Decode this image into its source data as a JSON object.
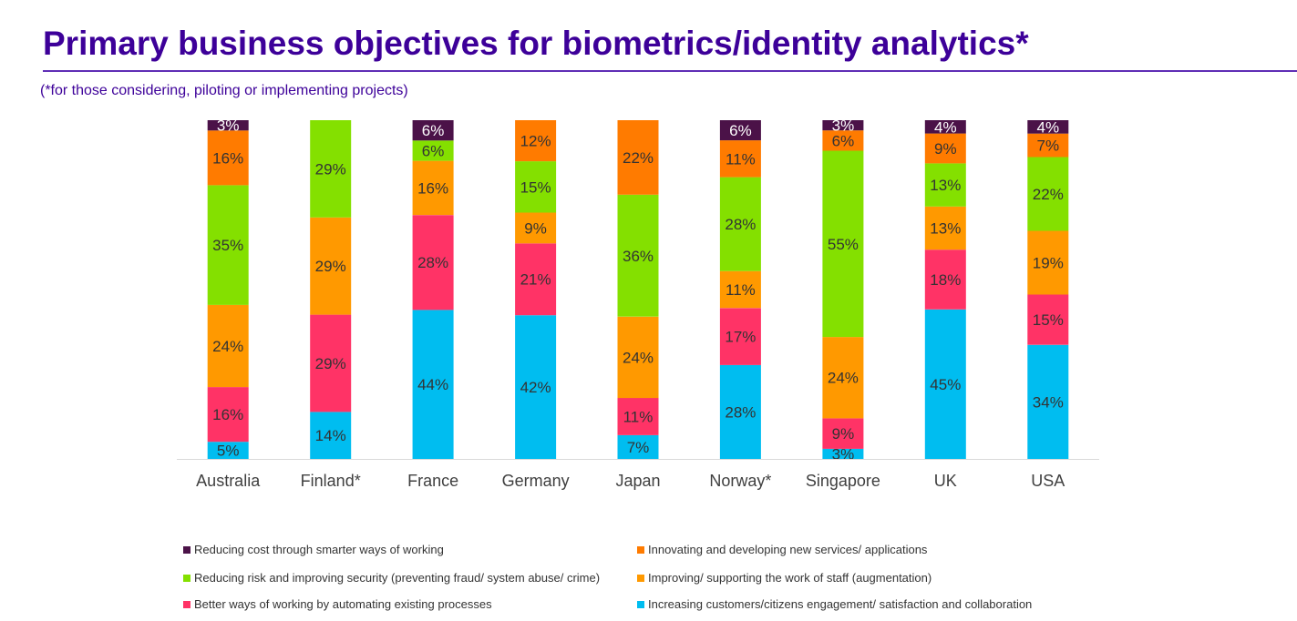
{
  "header": {
    "title": "Primary business objectives for biometrics/identity analytics*",
    "subtitle": "(*for those considering, piloting or implementing projects)"
  },
  "chart_data": {
    "type": "bar",
    "stacked": true,
    "title": "Primary business objectives for biometrics/identity analytics*",
    "subtitle": "(*for those considering, piloting or implementing projects)",
    "xlabel": "",
    "ylabel": "",
    "ylim": [
      0,
      100
    ],
    "grid": false,
    "legend_position": "bottom",
    "categories": [
      "Australia",
      "Finland*",
      "France",
      "Germany",
      "Japan",
      "Norway*",
      "Singapore",
      "UK",
      "USA"
    ],
    "series": [
      {
        "name": "Increasing customers/citizens engagement/ satisfaction and collaboration",
        "color": "#00bdf0",
        "values": [
          5,
          14,
          44,
          42,
          7,
          28,
          3,
          45,
          34
        ]
      },
      {
        "name": "Better ways of working by automating existing processes",
        "color": "#ff3366",
        "values": [
          16,
          29,
          28,
          21,
          11,
          17,
          9,
          18,
          15
        ]
      },
      {
        "name": "Improving/ supporting the work of staff (augmentation)",
        "color": "#ff9900",
        "values": [
          24,
          29,
          16,
          9,
          24,
          11,
          24,
          13,
          19
        ]
      },
      {
        "name": "Reducing risk and improving security (preventing fraud/ system abuse/ crime)",
        "color": "#84e000",
        "values": [
          35,
          29,
          6,
          15,
          36,
          28,
          55,
          13,
          22
        ]
      },
      {
        "name": "Innovating and developing new services/ applications",
        "color": "#ff7b00",
        "values": [
          16,
          0,
          0,
          12,
          22,
          11,
          6,
          9,
          7
        ]
      },
      {
        "name": "Reducing cost through smarter ways of working",
        "color": "#4b1248",
        "values": [
          3,
          0,
          6,
          0,
          0,
          6,
          3,
          4,
          4
        ]
      }
    ]
  },
  "legend": {
    "items": [
      {
        "label": "Reducing cost through smarter ways of working",
        "color": "#4b1248"
      },
      {
        "label": "Innovating and developing new services/ applications",
        "color": "#ff7b00"
      },
      {
        "label": "Reducing risk and improving security (preventing fraud/ system abuse/ crime)",
        "color": "#84e000"
      },
      {
        "label": "Improving/ supporting the work of staff (augmentation)",
        "color": "#ff9900"
      },
      {
        "label": "Better ways of working by automating existing processes",
        "color": "#ff3366"
      },
      {
        "label": "Increasing customers/citizens engagement/ satisfaction and collaboration",
        "color": "#00bdf0"
      }
    ]
  }
}
